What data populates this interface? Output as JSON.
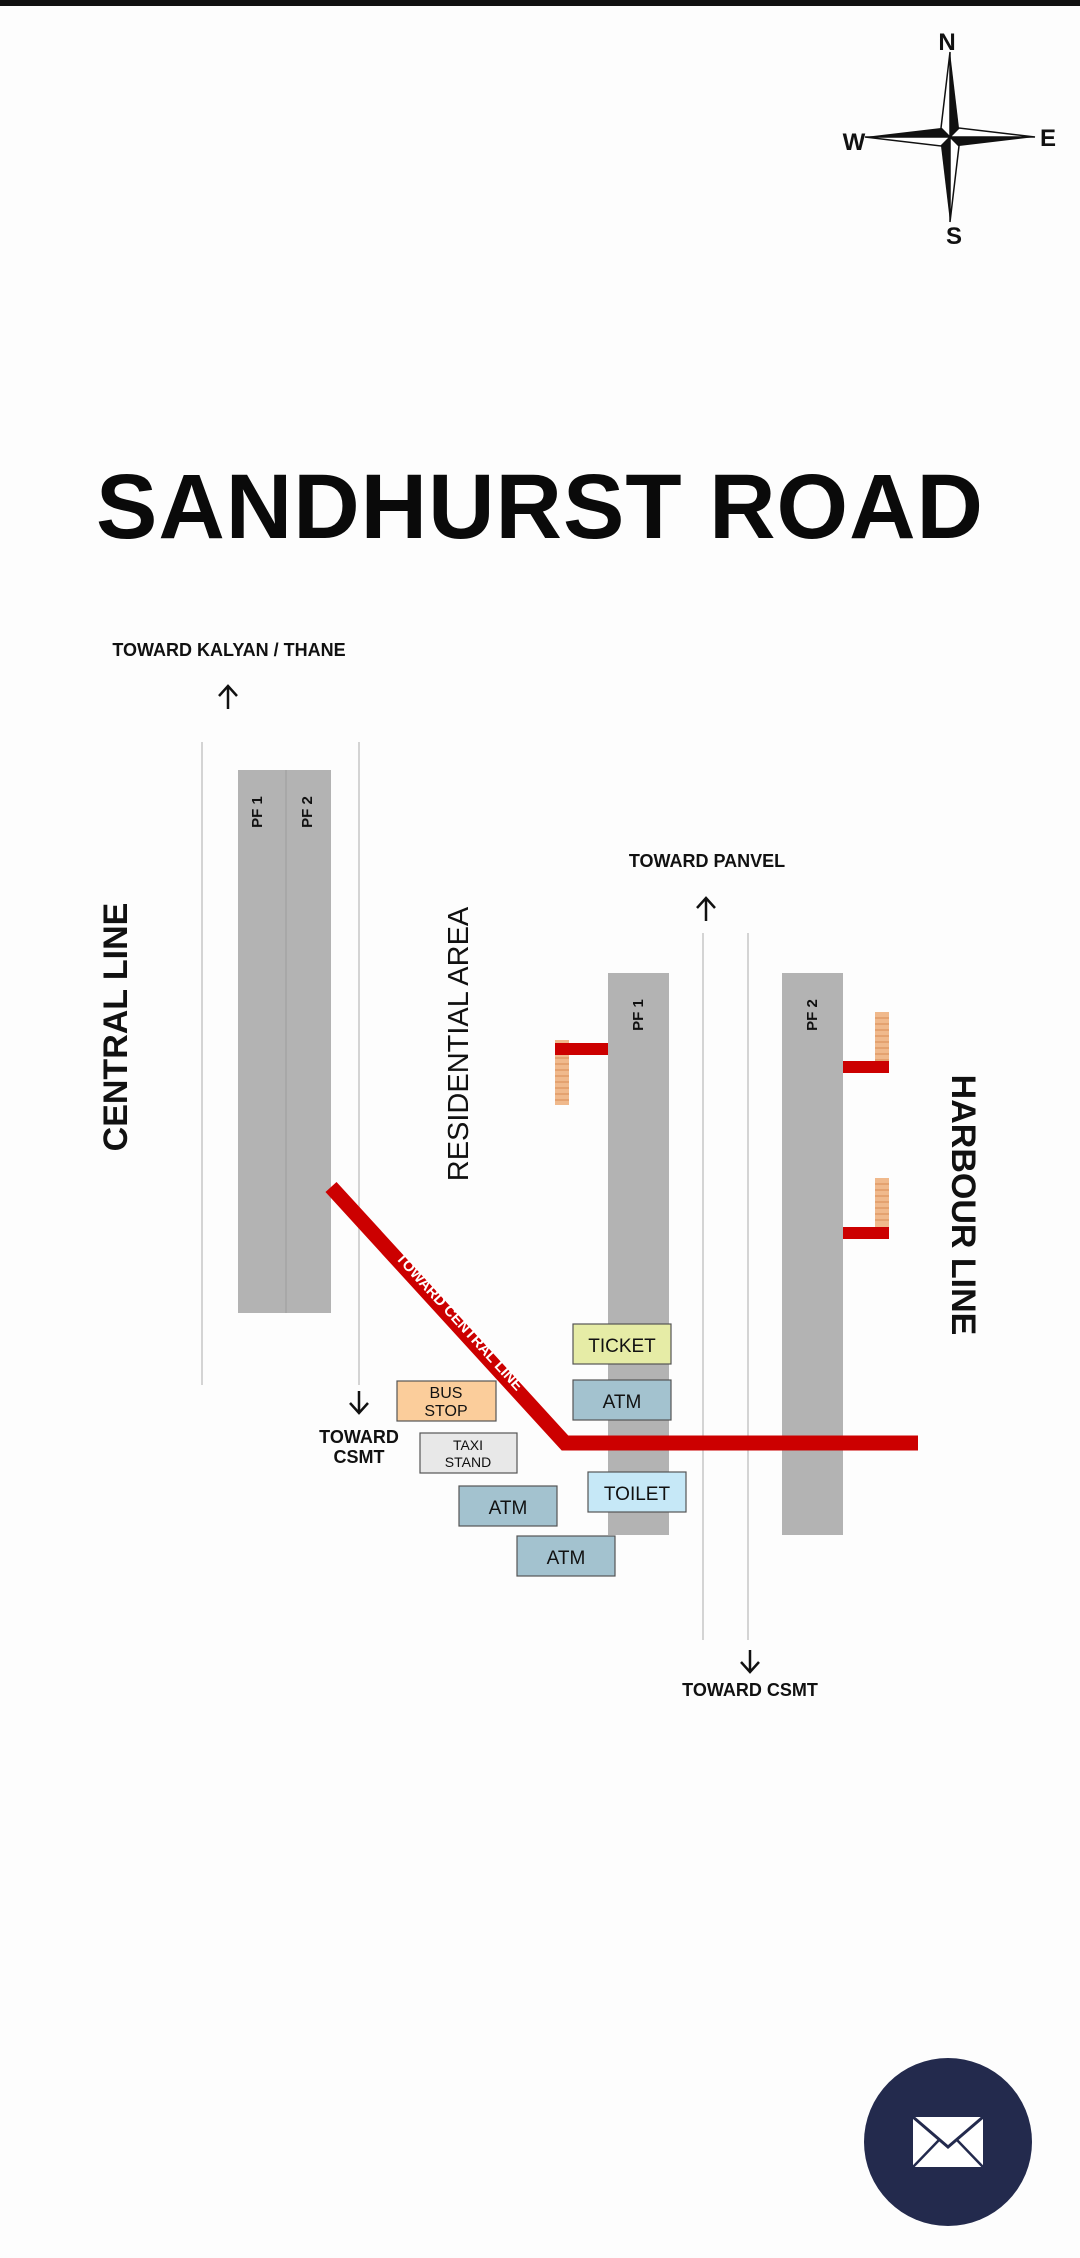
{
  "compass": {
    "n": "N",
    "s": "S",
    "e": "E",
    "w": "W"
  },
  "title": "SANDHURST ROAD",
  "map": {
    "toward_kalyan": "TOWARD KALYAN / THANE",
    "toward_panvel": "TOWARD PANVEL",
    "toward_csmt_1": "TOWARD",
    "toward_csmt_2": "CSMT",
    "toward_csmt": "TOWARD CSMT",
    "central_line": "CENTRAL LINE",
    "harbour_line": "HARBOUR LINE",
    "residential_area": "RESIDENTIAL AREA",
    "toward_central_line": "TOWARD CENTRAL LINE",
    "pf1": "PF 1",
    "pf2": "PF 2",
    "ticket": "TICKET",
    "atm": "ATM",
    "toilet": "TOILET",
    "bus_stop_1": "BUS",
    "bus_stop_2": "STOP",
    "taxi_stand_1": "TAXI",
    "taxi_stand_2": "STAND"
  },
  "colors": {
    "platform": "#b3b3b3",
    "bridge": "#cc0000",
    "ticket": "#e6eca6",
    "atm": "#a3c2cf",
    "toilet": "#c6e8f7",
    "bus_stop": "#fbcd9b",
    "taxi_stand": "#e8e8e8",
    "stairs": "#f0b98c",
    "mail_button": "#232a4d"
  },
  "mail_icon": "envelope-icon"
}
